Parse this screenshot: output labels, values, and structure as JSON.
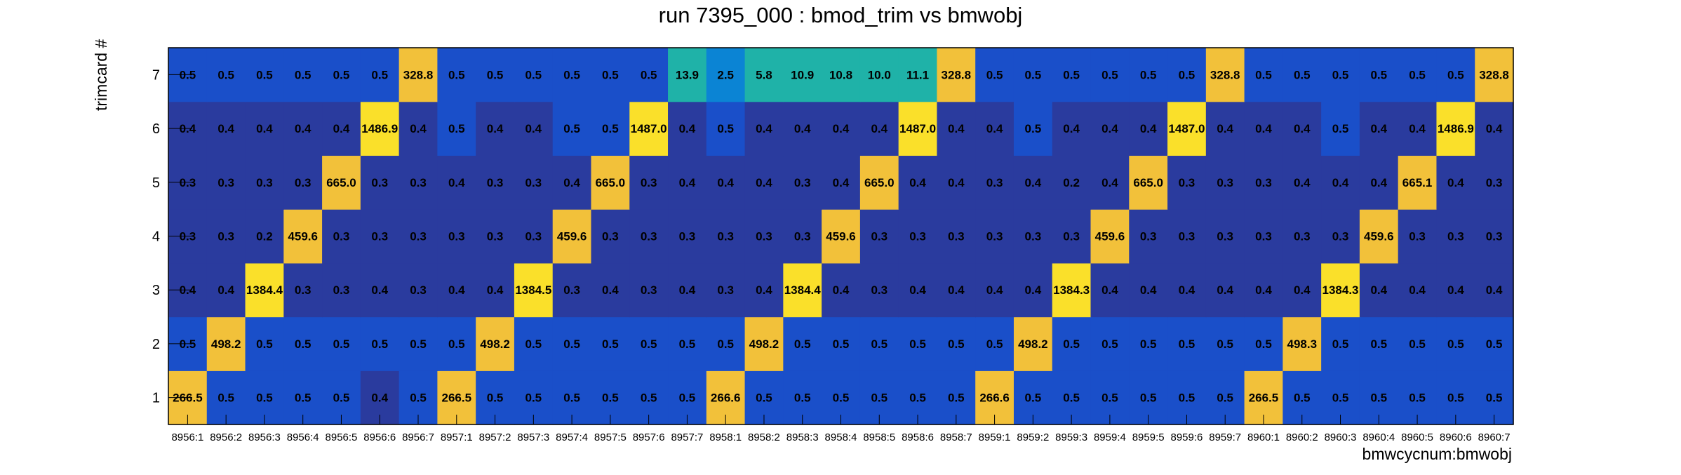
{
  "chart_data": {
    "type": "heatmap",
    "title": "run 7395_000 : bmod_trim vs bmwobj",
    "xlabel": "bmwcycnum:bmwobj",
    "ylabel": "trimcard #",
    "categories_x": [
      "8956:1",
      "8956:2",
      "8956:3",
      "8956:4",
      "8956:5",
      "8956:6",
      "8956:7",
      "8957:1",
      "8957:2",
      "8957:3",
      "8957:4",
      "8957:5",
      "8957:6",
      "8957:7",
      "8958:1",
      "8958:2",
      "8958:3",
      "8958:4",
      "8958:5",
      "8958:6",
      "8958:7",
      "8959:1",
      "8959:2",
      "8959:3",
      "8959:4",
      "8959:5",
      "8959:6",
      "8959:7",
      "8960:1",
      "8960:2",
      "8960:3",
      "8960:4",
      "8960:5",
      "8960:6",
      "8960:7"
    ],
    "categories_y": [
      "1",
      "2",
      "3",
      "4",
      "5",
      "6",
      "7"
    ],
    "values": [
      [
        266.5,
        0.5,
        0.5,
        0.5,
        0.5,
        0.4,
        0.5,
        266.5,
        0.5,
        0.5,
        0.5,
        0.5,
        0.5,
        0.5,
        266.6,
        0.5,
        0.5,
        0.5,
        0.5,
        0.5,
        0.5,
        266.6,
        0.5,
        0.5,
        0.5,
        0.5,
        0.5,
        0.5,
        266.5,
        0.5,
        0.5,
        0.5,
        0.5,
        0.5,
        0.5
      ],
      [
        0.5,
        498.2,
        0.5,
        0.5,
        0.5,
        0.5,
        0.5,
        0.5,
        498.2,
        0.5,
        0.5,
        0.5,
        0.5,
        0.5,
        0.5,
        498.2,
        0.5,
        0.5,
        0.5,
        0.5,
        0.5,
        0.5,
        498.2,
        0.5,
        0.5,
        0.5,
        0.5,
        0.5,
        0.5,
        498.3,
        0.5,
        0.5,
        0.5,
        0.5,
        0.5
      ],
      [
        0.4,
        0.4,
        1384.4,
        0.3,
        0.3,
        0.4,
        0.3,
        0.4,
        0.4,
        1384.5,
        0.3,
        0.4,
        0.3,
        0.4,
        0.3,
        0.4,
        1384.4,
        0.4,
        0.3,
        0.4,
        0.4,
        0.4,
        0.4,
        1384.3,
        0.4,
        0.4,
        0.4,
        0.4,
        0.4,
        0.4,
        1384.3,
        0.4,
        0.4,
        0.4,
        0.4
      ],
      [
        0.3,
        0.3,
        0.2,
        459.6,
        0.3,
        0.3,
        0.3,
        0.3,
        0.3,
        0.3,
        459.6,
        0.3,
        0.3,
        0.3,
        0.3,
        0.3,
        0.3,
        459.6,
        0.3,
        0.3,
        0.3,
        0.3,
        0.3,
        0.3,
        459.6,
        0.3,
        0.3,
        0.3,
        0.3,
        0.3,
        0.3,
        459.6,
        0.3,
        0.3,
        0.3
      ],
      [
        0.3,
        0.3,
        0.3,
        0.3,
        665.0,
        0.3,
        0.3,
        0.4,
        0.3,
        0.3,
        0.4,
        665.0,
        0.3,
        0.4,
        0.4,
        0.4,
        0.3,
        0.4,
        665.0,
        0.4,
        0.4,
        0.3,
        0.4,
        0.2,
        0.4,
        665.0,
        0.3,
        0.3,
        0.3,
        0.4,
        0.4,
        0.4,
        665.1,
        0.4,
        0.3
      ],
      [
        0.4,
        0.4,
        0.4,
        0.4,
        0.4,
        1486.9,
        0.4,
        0.5,
        0.4,
        0.4,
        0.5,
        0.5,
        1487.0,
        0.4,
        0.5,
        0.4,
        0.4,
        0.4,
        0.4,
        1487.0,
        0.4,
        0.4,
        0.5,
        0.4,
        0.4,
        0.4,
        1487.0,
        0.4,
        0.4,
        0.4,
        0.5,
        0.4,
        0.4,
        1486.9,
        0.4
      ],
      [
        0.5,
        0.5,
        0.5,
        0.5,
        0.5,
        0.5,
        328.8,
        0.5,
        0.5,
        0.5,
        0.5,
        0.5,
        0.5,
        13.9,
        2.5,
        5.8,
        10.9,
        10.8,
        10.0,
        11.1,
        328.8,
        0.5,
        0.5,
        0.5,
        0.5,
        0.5,
        0.5,
        328.8,
        0.5,
        0.5,
        0.5,
        0.5,
        0.5,
        0.5,
        328.8
      ]
    ],
    "value_format": "one decimal",
    "colors": {
      "low": "#1a4fc9",
      "dark": "#2a3b9e",
      "teal": "#1fb2a8",
      "mid_blue": "#0b84d4",
      "orange": "#f2c13a",
      "yellow": "#fae02a"
    },
    "grid": false,
    "legend": "none"
  }
}
